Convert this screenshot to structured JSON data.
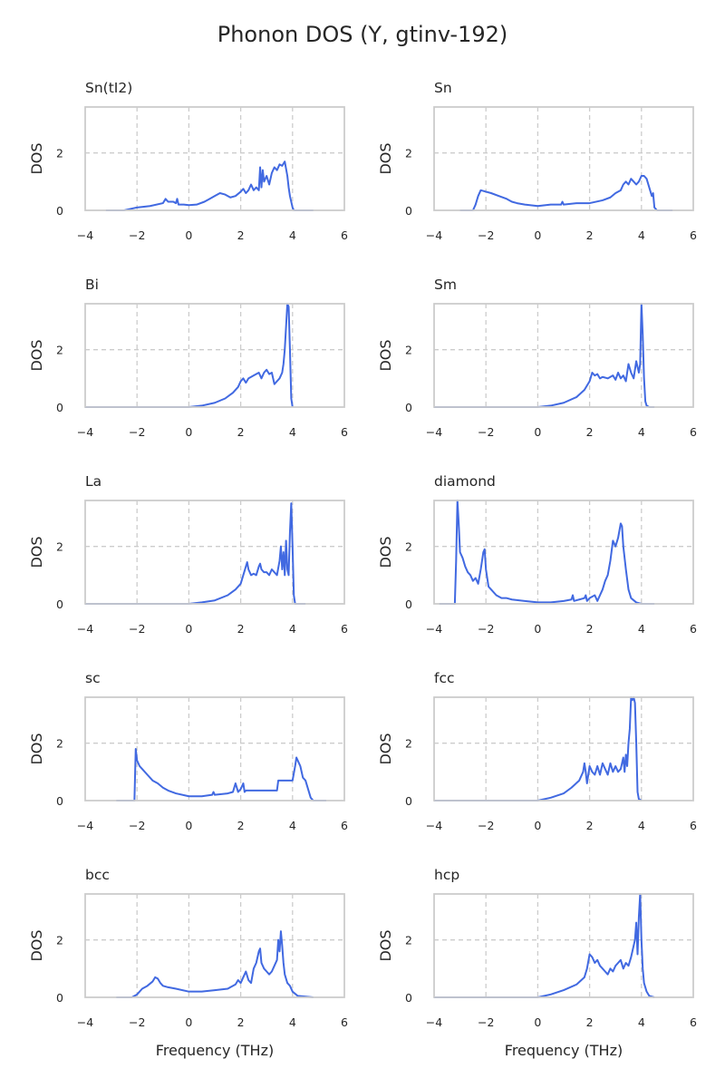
{
  "figure": {
    "title": "Phonon DOS (Y, gtinv-192)",
    "line_color": "#4169e1",
    "frame_color": "#cccccc",
    "grid_color": "#cccccc",
    "text_color": "#262626"
  },
  "chart_data": [
    {
      "type": "line",
      "title": "Sn(tI2)",
      "xlabel": "",
      "ylabel": "DOS",
      "xlim": [
        -4,
        6
      ],
      "ylim": [
        0,
        3.6
      ],
      "xticks": [
        -4,
        -2,
        0,
        2,
        4,
        6
      ],
      "yticks": [
        0,
        2
      ],
      "grid": true,
      "x": [
        -3.2,
        -2.5,
        -2.0,
        -1.5,
        -1.0,
        -0.9,
        -0.8,
        -0.6,
        -0.5,
        -0.45,
        -0.4,
        -0.2,
        0.0,
        0.3,
        0.6,
        0.8,
        1.0,
        1.2,
        1.4,
        1.6,
        1.8,
        2.0,
        2.1,
        2.2,
        2.3,
        2.4,
        2.5,
        2.6,
        2.7,
        2.75,
        2.8,
        2.85,
        2.9,
        3.0,
        3.1,
        3.2,
        3.3,
        3.4,
        3.5,
        3.6,
        3.7,
        3.8,
        3.85,
        3.9,
        4.0,
        4.05,
        4.1,
        4.3,
        4.8
      ],
      "y": [
        0,
        0,
        0.1,
        0.15,
        0.25,
        0.4,
        0.3,
        0.3,
        0.25,
        0.4,
        0.2,
        0.2,
        0.18,
        0.2,
        0.3,
        0.4,
        0.5,
        0.6,
        0.55,
        0.45,
        0.5,
        0.65,
        0.75,
        0.6,
        0.7,
        0.9,
        0.7,
        0.8,
        0.7,
        1.5,
        0.8,
        1.4,
        1.0,
        1.2,
        0.9,
        1.3,
        1.5,
        1.4,
        1.6,
        1.55,
        1.7,
        1.2,
        0.8,
        0.5,
        0.1,
        0,
        0,
        0,
        0
      ]
    },
    {
      "type": "line",
      "title": "Sn",
      "xlabel": "",
      "ylabel": "DOS",
      "xlim": [
        -4,
        6
      ],
      "ylim": [
        0,
        3.6
      ],
      "xticks": [
        -4,
        -2,
        0,
        2,
        4,
        6
      ],
      "yticks": [
        0,
        2
      ],
      "grid": true,
      "x": [
        -3.0,
        -2.5,
        -2.4,
        -2.3,
        -2.2,
        -2.0,
        -1.8,
        -1.5,
        -1.2,
        -1.0,
        -0.8,
        -0.5,
        0.0,
        0.5,
        0.9,
        0.95,
        1.0,
        1.5,
        2.0,
        2.5,
        2.8,
        3.0,
        3.2,
        3.3,
        3.4,
        3.5,
        3.6,
        3.7,
        3.8,
        3.9,
        4.0,
        4.1,
        4.2,
        4.3,
        4.4,
        4.45,
        4.5,
        4.6,
        5.2
      ],
      "y": [
        0,
        0,
        0.2,
        0.5,
        0.7,
        0.65,
        0.6,
        0.5,
        0.4,
        0.3,
        0.25,
        0.2,
        0.15,
        0.2,
        0.2,
        0.3,
        0.2,
        0.25,
        0.25,
        0.35,
        0.45,
        0.6,
        0.7,
        0.9,
        1.0,
        0.9,
        1.1,
        1.0,
        0.9,
        1.0,
        1.2,
        1.2,
        1.1,
        0.8,
        0.5,
        0.6,
        0.1,
        0,
        0
      ]
    },
    {
      "type": "line",
      "title": "Bi",
      "xlabel": "",
      "ylabel": "DOS",
      "xlim": [
        -4,
        6
      ],
      "ylim": [
        0,
        3.6
      ],
      "xticks": [
        -4,
        -2,
        0,
        2,
        4,
        6
      ],
      "yticks": [
        0,
        2
      ],
      "grid": true,
      "x": [
        -4.0,
        0.0,
        0.5,
        1.0,
        1.4,
        1.7,
        1.9,
        2.0,
        2.1,
        2.2,
        2.3,
        2.5,
        2.7,
        2.8,
        2.9,
        3.0,
        3.1,
        3.2,
        3.3,
        3.4,
        3.5,
        3.6,
        3.65,
        3.7,
        3.75,
        3.8,
        3.85,
        3.9,
        3.95,
        4.0
      ],
      "y": [
        0,
        0,
        0.05,
        0.15,
        0.3,
        0.5,
        0.7,
        0.9,
        1.0,
        0.85,
        1.0,
        1.1,
        1.2,
        1.0,
        1.2,
        1.3,
        1.15,
        1.2,
        0.8,
        0.9,
        1.0,
        1.2,
        1.5,
        2.0,
        2.8,
        3.6,
        3.5,
        2.0,
        0.3,
        0
      ]
    },
    {
      "type": "line",
      "title": "Sm",
      "xlabel": "",
      "ylabel": "DOS",
      "xlim": [
        -4,
        6
      ],
      "ylim": [
        0,
        3.6
      ],
      "xticks": [
        -4,
        -2,
        0,
        2,
        4,
        6
      ],
      "yticks": [
        0,
        2
      ],
      "grid": true,
      "x": [
        -4.0,
        0.0,
        0.5,
        1.0,
        1.5,
        1.8,
        2.0,
        2.1,
        2.2,
        2.3,
        2.4,
        2.5,
        2.7,
        2.9,
        3.0,
        3.1,
        3.2,
        3.3,
        3.4,
        3.5,
        3.6,
        3.7,
        3.8,
        3.9,
        3.95,
        4.0,
        4.05,
        4.1,
        4.15,
        4.2,
        4.3,
        4.5
      ],
      "y": [
        0,
        0,
        0.05,
        0.15,
        0.35,
        0.6,
        0.9,
        1.2,
        1.1,
        1.15,
        1.0,
        1.05,
        1.0,
        1.1,
        0.95,
        1.2,
        1.0,
        1.1,
        0.9,
        1.5,
        1.2,
        1.0,
        1.6,
        1.2,
        1.5,
        3.6,
        2.5,
        1.0,
        0.2,
        0.05,
        0,
        0
      ]
    },
    {
      "type": "line",
      "title": "La",
      "xlabel": "",
      "ylabel": "DOS",
      "xlim": [
        -4,
        6
      ],
      "ylim": [
        0,
        3.6
      ],
      "xticks": [
        -4,
        -2,
        0,
        2,
        4,
        6
      ],
      "yticks": [
        0,
        2
      ],
      "grid": true,
      "x": [
        -4.0,
        0.0,
        0.5,
        1.0,
        1.5,
        1.8,
        2.0,
        2.1,
        2.2,
        2.25,
        2.3,
        2.4,
        2.5,
        2.6,
        2.7,
        2.75,
        2.8,
        2.9,
        3.0,
        3.1,
        3.2,
        3.3,
        3.4,
        3.5,
        3.55,
        3.6,
        3.65,
        3.7,
        3.75,
        3.8,
        3.85,
        3.9,
        3.95,
        4.0,
        4.05,
        4.1,
        4.5
      ],
      "y": [
        0,
        0,
        0.05,
        0.12,
        0.3,
        0.5,
        0.7,
        1.0,
        1.3,
        1.45,
        1.2,
        1.0,
        1.05,
        1.0,
        1.3,
        1.4,
        1.2,
        1.1,
        1.1,
        1.0,
        1.2,
        1.1,
        1.0,
        1.5,
        2.0,
        1.2,
        1.8,
        1.0,
        2.2,
        1.2,
        1.0,
        2.5,
        3.5,
        2.0,
        0.3,
        0,
        0
      ]
    },
    {
      "type": "line",
      "title": "diamond",
      "xlabel": "",
      "ylabel": "DOS",
      "xlim": [
        -4,
        6
      ],
      "ylim": [
        0,
        3.6
      ],
      "xticks": [
        -4,
        -2,
        0,
        2,
        4,
        6
      ],
      "yticks": [
        0,
        2
      ],
      "grid": true,
      "x": [
        -3.8,
        -3.2,
        -3.15,
        -3.1,
        -3.05,
        -3.0,
        -2.9,
        -2.8,
        -2.7,
        -2.6,
        -2.5,
        -2.4,
        -2.3,
        -2.2,
        -2.1,
        -2.05,
        -2.0,
        -1.9,
        -1.8,
        -1.6,
        -1.4,
        -1.2,
        -1.0,
        -0.5,
        0.0,
        0.5,
        1.0,
        1.3,
        1.35,
        1.4,
        1.6,
        1.8,
        1.85,
        1.9,
        2.0,
        2.2,
        2.3,
        2.4,
        2.5,
        2.6,
        2.7,
        2.8,
        2.9,
        3.0,
        3.1,
        3.2,
        3.25,
        3.3,
        3.4,
        3.5,
        3.6,
        3.8,
        4.0,
        4.5
      ],
      "y": [
        0,
        0,
        1.5,
        3.6,
        2.8,
        1.8,
        1.6,
        1.3,
        1.1,
        1.0,
        0.8,
        0.9,
        0.7,
        1.2,
        1.8,
        1.9,
        1.2,
        0.6,
        0.5,
        0.3,
        0.2,
        0.2,
        0.15,
        0.1,
        0.05,
        0.05,
        0.1,
        0.15,
        0.3,
        0.1,
        0.15,
        0.2,
        0.3,
        0.1,
        0.2,
        0.3,
        0.1,
        0.3,
        0.5,
        0.8,
        1.0,
        1.5,
        2.2,
        2.0,
        2.3,
        2.8,
        2.7,
        2.0,
        1.2,
        0.5,
        0.2,
        0.05,
        0,
        0
      ]
    },
    {
      "type": "line",
      "title": "sc",
      "xlabel": "",
      "ylabel": "DOS",
      "xlim": [
        -4,
        6
      ],
      "ylim": [
        0,
        3.6
      ],
      "xticks": [
        -4,
        -2,
        0,
        2,
        4,
        6
      ],
      "yticks": [
        0,
        2
      ],
      "grid": true,
      "x": [
        -2.8,
        -2.1,
        -2.05,
        -2.0,
        -1.9,
        -1.8,
        -1.6,
        -1.4,
        -1.2,
        -1.0,
        -0.8,
        -0.5,
        0.0,
        0.5,
        0.9,
        0.95,
        1.0,
        1.5,
        1.7,
        1.8,
        1.9,
        2.0,
        2.1,
        2.15,
        2.2,
        2.5,
        3.0,
        3.4,
        3.45,
        3.5,
        3.9,
        4.0,
        4.1,
        4.15,
        4.2,
        4.3,
        4.4,
        4.5,
        4.6,
        4.7,
        4.8,
        5.3
      ],
      "y": [
        0,
        0,
        1.8,
        1.4,
        1.2,
        1.1,
        0.9,
        0.7,
        0.6,
        0.45,
        0.35,
        0.25,
        0.15,
        0.15,
        0.2,
        0.3,
        0.2,
        0.25,
        0.3,
        0.6,
        0.3,
        0.4,
        0.6,
        0.3,
        0.35,
        0.35,
        0.35,
        0.35,
        0.7,
        0.7,
        0.7,
        0.7,
        1.2,
        1.5,
        1.4,
        1.2,
        0.8,
        0.7,
        0.4,
        0.1,
        0,
        0
      ]
    },
    {
      "type": "line",
      "title": "fcc",
      "xlabel": "",
      "ylabel": "DOS",
      "xlim": [
        -4,
        6
      ],
      "ylim": [
        0,
        3.6
      ],
      "xticks": [
        -4,
        -2,
        0,
        2,
        4,
        6
      ],
      "yticks": [
        0,
        2
      ],
      "grid": true,
      "x": [
        -4.0,
        0.0,
        0.5,
        1.0,
        1.3,
        1.6,
        1.75,
        1.8,
        1.85,
        1.9,
        2.0,
        2.1,
        2.2,
        2.3,
        2.4,
        2.5,
        2.6,
        2.7,
        2.8,
        2.9,
        3.0,
        3.1,
        3.2,
        3.3,
        3.35,
        3.4,
        3.45,
        3.5,
        3.55,
        3.6,
        3.65,
        3.7,
        3.75,
        3.8,
        3.85,
        3.9,
        4.0
      ],
      "y": [
        0,
        0,
        0.1,
        0.25,
        0.45,
        0.7,
        1.0,
        1.3,
        1.0,
        0.6,
        1.2,
        1.0,
        0.9,
        1.2,
        0.9,
        1.3,
        1.1,
        0.9,
        1.3,
        1.0,
        1.2,
        1.0,
        1.1,
        1.5,
        1.0,
        1.6,
        1.2,
        2.0,
        2.5,
        3.6,
        3.5,
        3.6,
        3.4,
        2.0,
        0.3,
        0.05,
        0
      ]
    },
    {
      "type": "line",
      "title": "bcc",
      "xlabel": "Frequency (THz)",
      "ylabel": "DOS",
      "xlim": [
        -4,
        6
      ],
      "ylim": [
        0,
        3.6
      ],
      "xticks": [
        -4,
        -2,
        0,
        2,
        4,
        6
      ],
      "yticks": [
        0,
        2
      ],
      "grid": true,
      "x": [
        -2.8,
        -2.2,
        -2.0,
        -1.8,
        -1.6,
        -1.4,
        -1.3,
        -1.2,
        -1.1,
        -1.0,
        -0.8,
        -0.5,
        0.0,
        0.5,
        1.0,
        1.5,
        1.8,
        1.9,
        2.0,
        2.1,
        2.2,
        2.3,
        2.4,
        2.5,
        2.6,
        2.7,
        2.75,
        2.8,
        2.9,
        3.0,
        3.1,
        3.2,
        3.3,
        3.4,
        3.45,
        3.5,
        3.55,
        3.6,
        3.65,
        3.7,
        3.8,
        3.9,
        4.0,
        4.2,
        4.8
      ],
      "y": [
        0,
        0,
        0.1,
        0.3,
        0.4,
        0.55,
        0.7,
        0.65,
        0.5,
        0.4,
        0.35,
        0.3,
        0.2,
        0.2,
        0.25,
        0.3,
        0.45,
        0.6,
        0.5,
        0.7,
        0.9,
        0.6,
        0.5,
        1.0,
        1.2,
        1.6,
        1.7,
        1.2,
        1.0,
        0.9,
        0.8,
        0.9,
        1.1,
        1.3,
        2.0,
        1.6,
        2.3,
        1.8,
        1.2,
        0.8,
        0.5,
        0.4,
        0.2,
        0.05,
        0
      ]
    },
    {
      "type": "line",
      "title": "hcp",
      "xlabel": "Frequency (THz)",
      "ylabel": "DOS",
      "xlim": [
        -4,
        6
      ],
      "ylim": [
        0,
        3.6
      ],
      "xticks": [
        -4,
        -2,
        0,
        2,
        4,
        6
      ],
      "yticks": [
        0,
        2
      ],
      "grid": true,
      "x": [
        -4.0,
        0.0,
        0.5,
        1.0,
        1.5,
        1.8,
        1.9,
        2.0,
        2.1,
        2.2,
        2.3,
        2.4,
        2.5,
        2.6,
        2.7,
        2.8,
        2.9,
        3.0,
        3.1,
        3.2,
        3.3,
        3.4,
        3.5,
        3.6,
        3.7,
        3.75,
        3.8,
        3.85,
        3.9,
        3.95,
        4.0,
        4.05,
        4.1,
        4.2,
        4.3,
        4.5
      ],
      "y": [
        0,
        0,
        0.1,
        0.25,
        0.45,
        0.7,
        1.0,
        1.5,
        1.4,
        1.2,
        1.3,
        1.1,
        1.0,
        0.9,
        0.8,
        1.0,
        0.9,
        1.1,
        1.2,
        1.3,
        1.0,
        1.2,
        1.1,
        1.4,
        1.8,
        2.0,
        2.6,
        1.5,
        2.8,
        3.6,
        2.0,
        1.0,
        0.5,
        0.2,
        0.05,
        0
      ]
    }
  ]
}
